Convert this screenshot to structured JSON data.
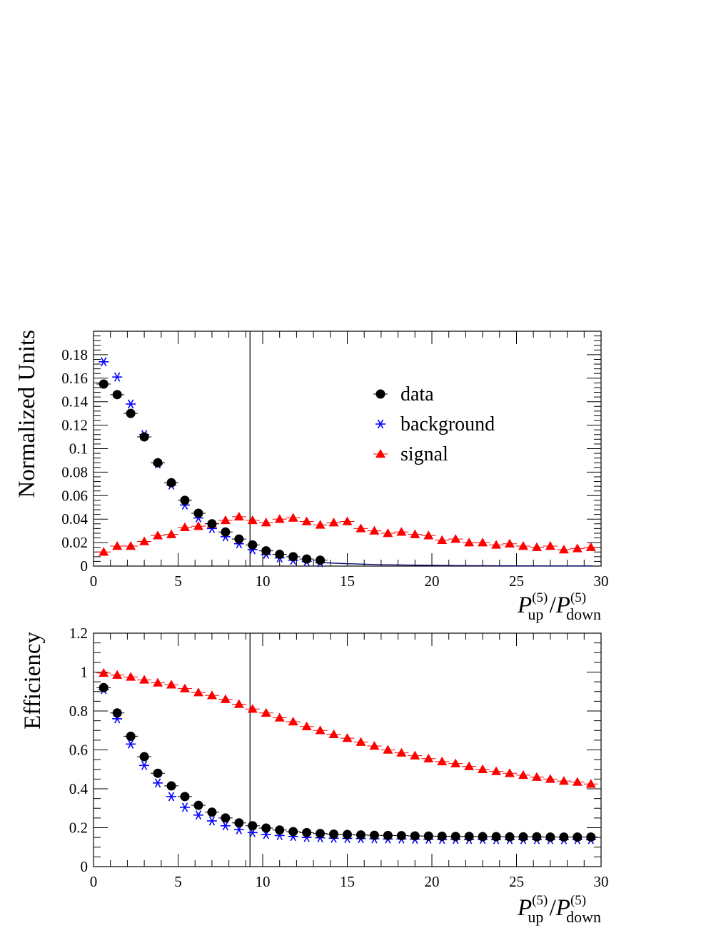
{
  "chart_data": [
    {
      "type": "scatter",
      "ylabel": "Normalized Units",
      "xlabel_main": "P",
      "xlabel_num_sup": "(5)",
      "xlabel_num_sub": "up",
      "xlabel_sep": " /",
      "xlabel_den_main": "P",
      "xlabel_den_sup": "(5)",
      "xlabel_den_sub": "down",
      "xlim": [
        0,
        30
      ],
      "ylim": [
        0,
        0.2
      ],
      "xticks": [
        0,
        5,
        10,
        15,
        20,
        25,
        30
      ],
      "xtick_labels": [
        "0",
        "5",
        "10",
        "15",
        "20",
        "25",
        "30"
      ],
      "yticks": [
        0,
        0.02,
        0.04,
        0.06,
        0.08,
        0.1,
        0.12,
        0.14,
        0.16,
        0.18
      ],
      "ytick_labels": [
        "0",
        "0.02",
        "0.04",
        "0.06",
        "0.08",
        "0.1",
        "0.12",
        "0.14",
        "0.16",
        "0.18"
      ],
      "cut_line_x": 9.25,
      "legend_position": "upper-right",
      "series": [
        {
          "name": "data",
          "marker": "circle",
          "color": "#000000",
          "x": [
            0.6,
            1.4,
            2.2,
            3.0,
            3.8,
            4.6,
            5.4,
            6.2,
            7.0,
            7.8,
            8.6,
            9.4,
            10.2,
            11.0,
            11.8,
            12.6,
            13.4
          ],
          "y": [
            0.155,
            0.146,
            0.13,
            0.11,
            0.088,
            0.071,
            0.056,
            0.045,
            0.036,
            0.029,
            0.023,
            0.018,
            0.013,
            0.01,
            0.008,
            0.006,
            0.005
          ]
        },
        {
          "name": "background",
          "marker": "asterisk",
          "color": "#0000ff",
          "x": [
            0.6,
            1.4,
            2.2,
            3.0,
            3.8,
            4.6,
            5.4,
            6.2,
            7.0,
            7.8,
            8.6,
            9.4,
            10.2,
            11.0,
            11.8,
            12.6,
            13.4
          ],
          "y": [
            0.174,
            0.161,
            0.138,
            0.112,
            0.087,
            0.069,
            0.052,
            0.041,
            0.032,
            0.025,
            0.019,
            0.014,
            0.01,
            0.007,
            0.005,
            0.004,
            0.003
          ]
        },
        {
          "name": "signal",
          "marker": "triangle",
          "color": "#ff0000",
          "x": [
            0.6,
            1.4,
            2.2,
            3.0,
            3.8,
            4.6,
            5.4,
            6.2,
            7.0,
            7.8,
            8.6,
            9.4,
            10.2,
            11.0,
            11.8,
            12.6,
            13.4,
            14.2,
            15.0,
            15.8,
            16.6,
            17.4,
            18.2,
            19.0,
            19.8,
            20.6,
            21.4,
            22.2,
            23.0,
            23.8,
            24.6,
            25.4,
            26.2,
            27.0,
            27.8,
            28.6,
            29.4
          ],
          "y": [
            0.012,
            0.017,
            0.017,
            0.021,
            0.026,
            0.027,
            0.033,
            0.034,
            0.036,
            0.039,
            0.042,
            0.039,
            0.037,
            0.04,
            0.041,
            0.038,
            0.035,
            0.037,
            0.038,
            0.032,
            0.03,
            0.028,
            0.029,
            0.027,
            0.026,
            0.022,
            0.023,
            0.02,
            0.02,
            0.018,
            0.019,
            0.017,
            0.016,
            0.017,
            0.014,
            0.015,
            0.016
          ]
        }
      ],
      "background_tail_line": {
        "x": [
          13.4,
          15.0,
          17.0,
          19.0,
          21.0,
          23.0,
          25.0,
          27.0,
          29.5
        ],
        "y": [
          0.003,
          0.002,
          0.0012,
          0.0008,
          0.0005,
          0.0003,
          0.0002,
          0.0001,
          0.0001
        ]
      }
    },
    {
      "type": "scatter",
      "ylabel": "Efficiency",
      "xlabel_main": "P",
      "xlabel_num_sup": "(5)",
      "xlabel_num_sub": "up",
      "xlabel_sep": " /",
      "xlabel_den_main": "P",
      "xlabel_den_sup": "(5)",
      "xlabel_den_sub": "down",
      "xlim": [
        0,
        30
      ],
      "ylim": [
        0,
        1.2
      ],
      "xticks": [
        0,
        5,
        10,
        15,
        20,
        25,
        30
      ],
      "xtick_labels": [
        "0",
        "5",
        "10",
        "15",
        "20",
        "25",
        "30"
      ],
      "yticks": [
        0,
        0.2,
        0.4,
        0.6,
        0.8,
        1.0,
        1.2
      ],
      "ytick_labels": [
        "0",
        "0.2",
        "0.4",
        "0.6",
        "0.8",
        "1",
        "1.2"
      ],
      "cut_line_x": 9.25,
      "series": [
        {
          "name": "data",
          "marker": "circle",
          "color": "#000000",
          "x": [
            0.6,
            1.4,
            2.2,
            3.0,
            3.8,
            4.6,
            5.4,
            6.2,
            7.0,
            7.8,
            8.6,
            9.4,
            10.2,
            11.0,
            11.8,
            12.6,
            13.4,
            14.2,
            15.0,
            15.8,
            16.6,
            17.4,
            18.2,
            19.0,
            19.8,
            20.6,
            21.4,
            22.2,
            23.0,
            23.8,
            24.6,
            25.4,
            26.2,
            27.0,
            27.8,
            28.6,
            29.4
          ],
          "y": [
            0.92,
            0.79,
            0.67,
            0.565,
            0.48,
            0.415,
            0.36,
            0.315,
            0.28,
            0.25,
            0.225,
            0.21,
            0.198,
            0.188,
            0.18,
            0.175,
            0.17,
            0.167,
            0.165,
            0.163,
            0.161,
            0.16,
            0.159,
            0.158,
            0.157,
            0.156,
            0.155,
            0.155,
            0.154,
            0.154,
            0.153,
            0.153,
            0.153,
            0.152,
            0.152,
            0.152,
            0.152
          ]
        },
        {
          "name": "background",
          "marker": "asterisk",
          "color": "#0000ff",
          "x": [
            0.6,
            1.4,
            2.2,
            3.0,
            3.8,
            4.6,
            5.4,
            6.2,
            7.0,
            7.8,
            8.6,
            9.4,
            10.2,
            11.0,
            11.8,
            12.6,
            13.4,
            14.2,
            15.0,
            15.8,
            16.6,
            17.4,
            18.2,
            19.0,
            19.8,
            20.6,
            21.4,
            22.2,
            23.0,
            23.8,
            24.6,
            25.4,
            26.2,
            27.0,
            27.8,
            28.6,
            29.4
          ],
          "y": [
            0.91,
            0.76,
            0.63,
            0.52,
            0.43,
            0.36,
            0.305,
            0.265,
            0.235,
            0.21,
            0.19,
            0.175,
            0.165,
            0.16,
            0.155,
            0.15,
            0.148,
            0.146,
            0.145,
            0.144,
            0.143,
            0.142,
            0.142,
            0.141,
            0.141,
            0.14,
            0.14,
            0.14,
            0.14,
            0.139,
            0.139,
            0.139,
            0.139,
            0.139,
            0.139,
            0.139,
            0.139
          ]
        },
        {
          "name": "signal",
          "marker": "triangle",
          "color": "#ff0000",
          "x": [
            0.6,
            1.4,
            2.2,
            3.0,
            3.8,
            4.6,
            5.4,
            6.2,
            7.0,
            7.8,
            8.6,
            9.4,
            10.2,
            11.0,
            11.8,
            12.6,
            13.4,
            14.2,
            15.0,
            15.8,
            16.6,
            17.4,
            18.2,
            19.0,
            19.8,
            20.6,
            21.4,
            22.2,
            23.0,
            23.8,
            24.6,
            25.4,
            26.2,
            27.0,
            27.8,
            28.6,
            29.4
          ],
          "y": [
            0.995,
            0.985,
            0.975,
            0.96,
            0.945,
            0.935,
            0.915,
            0.895,
            0.88,
            0.86,
            0.835,
            0.81,
            0.79,
            0.765,
            0.745,
            0.72,
            0.7,
            0.68,
            0.66,
            0.64,
            0.62,
            0.6,
            0.585,
            0.57,
            0.555,
            0.54,
            0.53,
            0.515,
            0.5,
            0.49,
            0.48,
            0.47,
            0.46,
            0.45,
            0.44,
            0.435,
            0.425
          ]
        }
      ]
    }
  ]
}
